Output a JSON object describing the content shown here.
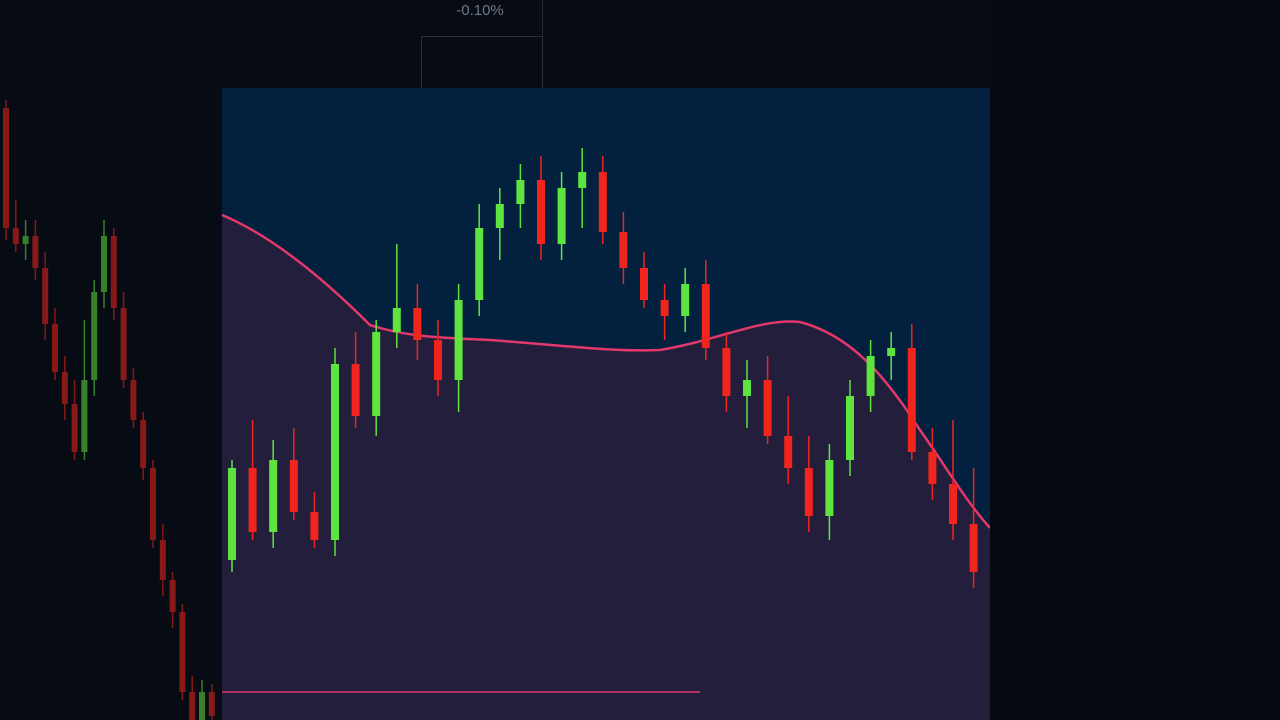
{
  "colors": {
    "background": "#070b14",
    "panel": "#03203f",
    "bull": "#5fe33f",
    "bear": "#f0251e",
    "band": "#e2386a",
    "band_fill": "#3c1e3a"
  },
  "measure": {
    "percent_label": "-0.10%"
  },
  "left_candles": [
    {
      "o": 628,
      "h": 630,
      "l": 595,
      "c": 598
    },
    {
      "o": 598,
      "h": 605,
      "l": 592,
      "c": 594
    },
    {
      "o": 594,
      "h": 600,
      "l": 590,
      "c": 596
    },
    {
      "o": 596,
      "h": 600,
      "l": 585,
      "c": 588
    },
    {
      "o": 588,
      "h": 592,
      "l": 570,
      "c": 574
    },
    {
      "o": 574,
      "h": 578,
      "l": 560,
      "c": 562
    },
    {
      "o": 562,
      "h": 566,
      "l": 550,
      "c": 554
    },
    {
      "o": 554,
      "h": 560,
      "l": 540,
      "c": 542
    },
    {
      "o": 542,
      "h": 575,
      "l": 540,
      "c": 560
    },
    {
      "o": 560,
      "h": 585,
      "l": 556,
      "c": 582
    },
    {
      "o": 582,
      "h": 600,
      "l": 578,
      "c": 596
    },
    {
      "o": 596,
      "h": 598,
      "l": 575,
      "c": 578
    },
    {
      "o": 578,
      "h": 582,
      "l": 558,
      "c": 560
    },
    {
      "o": 560,
      "h": 563,
      "l": 548,
      "c": 550
    },
    {
      "o": 550,
      "h": 552,
      "l": 535,
      "c": 538
    },
    {
      "o": 538,
      "h": 540,
      "l": 518,
      "c": 520
    },
    {
      "o": 520,
      "h": 524,
      "l": 506,
      "c": 510
    },
    {
      "o": 510,
      "h": 512,
      "l": 498,
      "c": 502
    },
    {
      "o": 502,
      "h": 504,
      "l": 480,
      "c": 482
    },
    {
      "o": 482,
      "h": 486,
      "l": 470,
      "c": 474
    },
    {
      "o": 474,
      "h": 485,
      "l": 472,
      "c": 482
    },
    {
      "o": 482,
      "h": 484,
      "l": 475,
      "c": 476
    }
  ],
  "candles": [
    {
      "o": 515,
      "h": 540,
      "l": 512,
      "c": 538
    },
    {
      "o": 538,
      "h": 550,
      "l": 520,
      "c": 522
    },
    {
      "o": 522,
      "h": 545,
      "l": 518,
      "c": 540
    },
    {
      "o": 540,
      "h": 548,
      "l": 525,
      "c": 527
    },
    {
      "o": 527,
      "h": 532,
      "l": 518,
      "c": 520
    },
    {
      "o": 520,
      "h": 568,
      "l": 516,
      "c": 564
    },
    {
      "o": 564,
      "h": 572,
      "l": 548,
      "c": 551
    },
    {
      "o": 551,
      "h": 575,
      "l": 546,
      "c": 572
    },
    {
      "o": 572,
      "h": 594,
      "l": 568,
      "c": 578
    },
    {
      "o": 578,
      "h": 584,
      "l": 565,
      "c": 570
    },
    {
      "o": 570,
      "h": 575,
      "l": 556,
      "c": 560
    },
    {
      "o": 560,
      "h": 584,
      "l": 552,
      "c": 580
    },
    {
      "o": 580,
      "h": 604,
      "l": 576,
      "c": 598
    },
    {
      "o": 598,
      "h": 608,
      "l": 590,
      "c": 604
    },
    {
      "o": 604,
      "h": 614,
      "l": 598,
      "c": 610
    },
    {
      "o": 610,
      "h": 616,
      "l": 590,
      "c": 594
    },
    {
      "o": 594,
      "h": 612,
      "l": 590,
      "c": 608
    },
    {
      "o": 608,
      "h": 618,
      "l": 598,
      "c": 612
    },
    {
      "o": 612,
      "h": 616,
      "l": 594,
      "c": 597
    },
    {
      "o": 597,
      "h": 602,
      "l": 584,
      "c": 588
    },
    {
      "o": 588,
      "h": 592,
      "l": 578,
      "c": 580
    },
    {
      "o": 580,
      "h": 584,
      "l": 570,
      "c": 576
    },
    {
      "o": 576,
      "h": 588,
      "l": 572,
      "c": 584
    },
    {
      "o": 584,
      "h": 590,
      "l": 565,
      "c": 568
    },
    {
      "o": 568,
      "h": 572,
      "l": 552,
      "c": 556
    },
    {
      "o": 556,
      "h": 565,
      "l": 548,
      "c": 560
    },
    {
      "o": 560,
      "h": 566,
      "l": 544,
      "c": 546
    },
    {
      "o": 546,
      "h": 556,
      "l": 534,
      "c": 538
    },
    {
      "o": 538,
      "h": 546,
      "l": 522,
      "c": 526
    },
    {
      "o": 526,
      "h": 544,
      "l": 520,
      "c": 540
    },
    {
      "o": 540,
      "h": 560,
      "l": 536,
      "c": 556
    },
    {
      "o": 556,
      "h": 570,
      "l": 552,
      "c": 566
    },
    {
      "o": 566,
      "h": 572,
      "l": 560,
      "c": 568
    },
    {
      "o": 568,
      "h": 574,
      "l": 540,
      "c": 542
    },
    {
      "o": 542,
      "h": 548,
      "l": 530,
      "c": 534
    },
    {
      "o": 534,
      "h": 550,
      "l": 520,
      "c": 524
    },
    {
      "o": 524,
      "h": 538,
      "l": 508,
      "c": 512
    }
  ]
}
